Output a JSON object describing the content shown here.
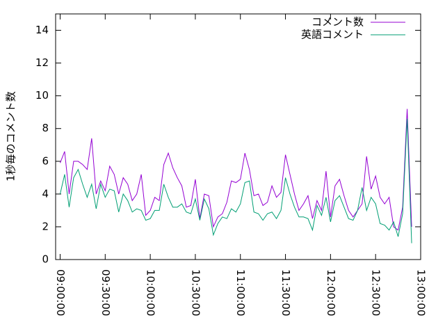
{
  "chart_data": {
    "type": "line",
    "ylabel": "1秒毎のコメント数",
    "x": [
      "09:00:00",
      "09:03:00",
      "09:06:00",
      "09:09:00",
      "09:12:00",
      "09:15:00",
      "09:18:00",
      "09:21:00",
      "09:24:00",
      "09:27:00",
      "09:30:00",
      "09:33:00",
      "09:36:00",
      "09:39:00",
      "09:42:00",
      "09:45:00",
      "09:48:00",
      "09:51:00",
      "09:54:00",
      "09:57:00",
      "10:00:00",
      "10:03:00",
      "10:06:00",
      "10:09:00",
      "10:12:00",
      "10:15:00",
      "10:18:00",
      "10:21:00",
      "10:24:00",
      "10:27:00",
      "10:30:00",
      "10:33:00",
      "10:36:00",
      "10:39:00",
      "10:42:00",
      "10:45:00",
      "10:48:00",
      "10:51:00",
      "10:54:00",
      "10:57:00",
      "11:00:00",
      "11:03:00",
      "11:06:00",
      "11:09:00",
      "11:12:00",
      "11:15:00",
      "11:18:00",
      "11:21:00",
      "11:24:00",
      "11:27:00",
      "11:30:00",
      "11:33:00",
      "11:36:00",
      "11:39:00",
      "11:42:00",
      "11:45:00",
      "11:48:00",
      "11:51:00",
      "11:54:00",
      "11:57:00",
      "12:00:00",
      "12:03:00",
      "12:06:00",
      "12:09:00",
      "12:12:00",
      "12:15:00",
      "12:18:00",
      "12:21:00",
      "12:24:00",
      "12:27:00",
      "12:30:00",
      "12:33:00",
      "12:36:00",
      "12:39:00",
      "12:42:00",
      "12:45:00",
      "12:48:00",
      "12:51:00",
      "12:54:00"
    ],
    "series": [
      {
        "name": "コメント数",
        "color": "#9400d3",
        "values": [
          5.9,
          6.6,
          4.0,
          6.0,
          6.0,
          5.8,
          5.5,
          7.4,
          4.0,
          4.8,
          4.2,
          5.7,
          5.2,
          4.0,
          5.0,
          4.6,
          3.6,
          4.0,
          5.2,
          2.7,
          3.0,
          3.8,
          3.6,
          5.8,
          6.5,
          5.6,
          5.0,
          4.5,
          3.2,
          3.3,
          4.9,
          2.5,
          4.0,
          3.9,
          2.0,
          2.6,
          2.8,
          3.5,
          4.8,
          4.7,
          4.9,
          6.5,
          5.5,
          3.9,
          4.0,
          3.3,
          3.5,
          4.5,
          3.8,
          4.1,
          6.4,
          5.2,
          4.0,
          3.0,
          3.4,
          3.9,
          2.5,
          3.6,
          3.0,
          5.4,
          2.6,
          4.5,
          4.9,
          3.9,
          3.0,
          2.6,
          3.0,
          3.4,
          6.3,
          4.3,
          5.1,
          3.8,
          3.4,
          3.8,
          2.0,
          1.8,
          3.2,
          9.2,
          2.0
        ]
      },
      {
        "name": "英語コメント",
        "color": "#009e73",
        "values": [
          4.0,
          5.2,
          3.2,
          5.0,
          5.5,
          4.6,
          3.8,
          4.6,
          3.1,
          4.6,
          3.8,
          4.3,
          4.2,
          2.9,
          4.0,
          3.6,
          2.9,
          3.1,
          3.0,
          2.4,
          2.5,
          3.0,
          3.0,
          4.6,
          3.8,
          3.2,
          3.2,
          3.4,
          2.9,
          2.8,
          3.7,
          2.4,
          3.7,
          3.1,
          1.5,
          2.2,
          2.6,
          2.5,
          3.1,
          2.9,
          3.4,
          4.7,
          4.8,
          2.9,
          2.8,
          2.4,
          2.8,
          2.9,
          2.5,
          3.0,
          5.0,
          4.0,
          3.2,
          2.6,
          2.6,
          2.5,
          1.8,
          3.3,
          2.7,
          3.8,
          2.3,
          3.6,
          3.9,
          3.2,
          2.5,
          2.4,
          3.0,
          4.4,
          3.0,
          3.8,
          3.4,
          2.2,
          2.1,
          1.8,
          2.3,
          1.4,
          2.8,
          8.6,
          1.0
        ]
      }
    ],
    "xlim": [
      "08:57:00",
      "13:00:00"
    ],
    "xticks": [
      "09:00:00",
      "09:30:00",
      "10:00:00",
      "10:30:00",
      "11:00:00",
      "11:30:00",
      "12:00:00",
      "12:30:00",
      "13:00:00"
    ],
    "ylim": [
      0,
      15
    ],
    "yticks": [
      0,
      2,
      4,
      6,
      8,
      10,
      12,
      14
    ],
    "legend": "top right"
  }
}
